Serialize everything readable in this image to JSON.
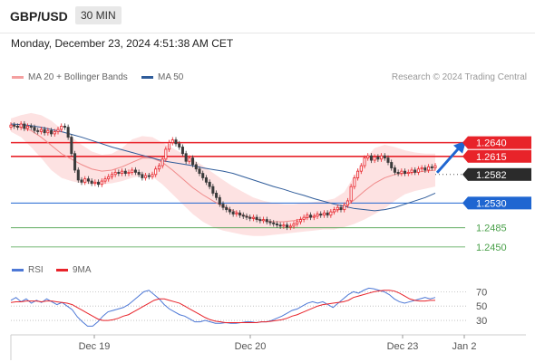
{
  "header": {
    "pair": "GBP/USD",
    "timeframe": "30 MIN"
  },
  "datetime": "Monday, December 23, 2024 4:51:38 AM CET",
  "credit": "Research © 2024 Trading Central",
  "colors": {
    "up": "#e8232a",
    "down": "#3a3a3a",
    "resistance": "#e8232a",
    "pivot": "#1f66d1",
    "support": "#4aa04a",
    "ma50": "#2f5c9a",
    "bb": "#f4a0a0",
    "rsi": "#4d78d6",
    "rsi_ma": "#e8232a"
  },
  "legend": {
    "ma20": "MA 20 + Bollinger Bands",
    "ma50": "MA 50",
    "rsi": "RSI",
    "rsi_ma": "9MA"
  },
  "chart_data": [
    {
      "type": "candlestick",
      "x_labels": [
        "Dec 19",
        "Dec 20",
        "Dec 23",
        "Jan 2"
      ],
      "y_range": [
        1.2435,
        1.2702
      ],
      "current_price": 1.2582,
      "levels": [
        {
          "label": "1.2640",
          "value": 1.264,
          "kind": "resistance"
        },
        {
          "label": "1.2615",
          "value": 1.2615,
          "kind": "resistance"
        },
        {
          "label": "1.2582",
          "value": 1.2582,
          "kind": "current"
        },
        {
          "label": "1.2530",
          "value": 1.253,
          "kind": "pivot"
        },
        {
          "label": "1.2485",
          "value": 1.2485,
          "kind": "support"
        },
        {
          "label": "1.2450",
          "value": 1.245,
          "kind": "support"
        }
      ],
      "closes": [
        1.2672,
        1.267,
        1.2668,
        1.2674,
        1.2666,
        1.267,
        1.2668,
        1.2662,
        1.266,
        1.2664,
        1.2658,
        1.2662,
        1.2656,
        1.266,
        1.2664,
        1.267,
        1.2668,
        1.265,
        1.262,
        1.259,
        1.2572,
        1.2568,
        1.2574,
        1.257,
        1.2566,
        1.2568,
        1.2564,
        1.257,
        1.2574,
        1.2578,
        1.2582,
        1.2586,
        1.2584,
        1.2588,
        1.2584,
        1.2586,
        1.259,
        1.2586,
        1.2582,
        1.2576,
        1.258,
        1.2578,
        1.2582,
        1.2592,
        1.2598,
        1.261,
        1.2628,
        1.264,
        1.2645,
        1.2638,
        1.2632,
        1.262,
        1.2606,
        1.2612,
        1.26,
        1.2592,
        1.2584,
        1.2576,
        1.2568,
        1.256,
        1.2548,
        1.254,
        1.2528,
        1.2522,
        1.2518,
        1.2514,
        1.251,
        1.2512,
        1.2508,
        1.2506,
        1.2504,
        1.2502,
        1.2504,
        1.25,
        1.2498,
        1.25,
        1.2496,
        1.2494,
        1.2492,
        1.249,
        1.2488,
        1.249,
        1.2486,
        1.2488,
        1.2492,
        1.2496,
        1.25,
        1.2504,
        1.2508,
        1.2504,
        1.2506,
        1.251,
        1.2508,
        1.2512,
        1.2508,
        1.2514,
        1.2518,
        1.2522,
        1.2518,
        1.2526,
        1.2534,
        1.256,
        1.2576,
        1.2588,
        1.2598,
        1.2612,
        1.2616,
        1.2608,
        1.2614,
        1.261,
        1.2616,
        1.2612,
        1.2604,
        1.2594,
        1.2586,
        1.2584,
        1.2588,
        1.2584,
        1.2586,
        1.259,
        1.2586,
        1.2592,
        1.2594,
        1.259,
        1.2596,
        1.2594,
        1.2598
      ],
      "ma50": [
        1.2674,
        1.2673,
        1.2671,
        1.2668,
        1.2664,
        1.266,
        1.2655,
        1.265,
        1.2644,
        1.2638,
        1.2632,
        1.2627,
        1.2622,
        1.2617,
        1.2612,
        1.2607,
        1.2604,
        1.2601,
        1.2598,
        1.2594,
        1.2591,
        1.2588,
        1.2584,
        1.2578,
        1.2572,
        1.2566,
        1.256,
        1.2555,
        1.2549,
        1.2544,
        1.2538,
        1.2533,
        1.2528,
        1.2524,
        1.252,
        1.2518,
        1.2516,
        1.2518,
        1.2522,
        1.2528,
        1.2534,
        1.254,
        1.2548
      ],
      "ma20": [
        1.2672,
        1.2668,
        1.2662,
        1.265,
        1.2635,
        1.262,
        1.261,
        1.26,
        1.2592,
        1.2588,
        1.259,
        1.2596,
        1.2604,
        1.2612,
        1.2612,
        1.2604,
        1.259,
        1.2574,
        1.2558,
        1.2545,
        1.2534,
        1.2524,
        1.2516,
        1.2508,
        1.2502,
        1.2498,
        1.2496,
        1.2496,
        1.2498,
        1.2502,
        1.2506,
        1.251,
        1.2514,
        1.2522,
        1.2536,
        1.2552,
        1.2566,
        1.2576,
        1.2582,
        1.2584,
        1.2586,
        1.2588,
        1.259
      ],
      "bb_upper": [
        1.2684,
        1.269,
        1.2694,
        1.269,
        1.268,
        1.2665,
        1.265,
        1.2636,
        1.2624,
        1.2618,
        1.262,
        1.263,
        1.2646,
        1.2652,
        1.265,
        1.264,
        1.263,
        1.262,
        1.261,
        1.2598,
        1.2585,
        1.2572,
        1.256,
        1.255,
        1.254,
        1.2534,
        1.253,
        1.2528,
        1.2528,
        1.253,
        1.2532,
        1.2534,
        1.2538,
        1.255,
        1.258,
        1.261,
        1.263,
        1.2636,
        1.2632,
        1.2626,
        1.2622,
        1.262,
        1.262
      ],
      "bb_lower": [
        1.266,
        1.265,
        1.2632,
        1.2612,
        1.259,
        1.2576,
        1.257,
        1.2566,
        1.2564,
        1.2564,
        1.2566,
        1.257,
        1.2576,
        1.258,
        1.2578,
        1.2564,
        1.2546,
        1.2528,
        1.251,
        1.2496,
        1.2486,
        1.248,
        1.2476,
        1.2472,
        1.247,
        1.247,
        1.2472,
        1.2474,
        1.2476,
        1.2478,
        1.248,
        1.2482,
        1.2482,
        1.2486,
        1.2492,
        1.25,
        1.251,
        1.252,
        1.2534,
        1.2546,
        1.2552,
        1.2556,
        1.256
      ]
    },
    {
      "type": "line",
      "title": "RSI",
      "y_range": [
        20,
        78
      ],
      "y_ticks": [
        70,
        50,
        30
      ],
      "series": [
        {
          "name": "RSI",
          "values": [
            58,
            62,
            56,
            60,
            54,
            58,
            55,
            60,
            56,
            52,
            55,
            50,
            45,
            35,
            28,
            22,
            22,
            28,
            36,
            42,
            44,
            46,
            48,
            52,
            58,
            64,
            70,
            72,
            66,
            60,
            52,
            46,
            42,
            38,
            36,
            32,
            28,
            28,
            30,
            28,
            26,
            26,
            27,
            26,
            26,
            27,
            28,
            28,
            27,
            28,
            28,
            30,
            33,
            36,
            40,
            44,
            46,
            50,
            54,
            56,
            54,
            56,
            52,
            48,
            54,
            60,
            66,
            70,
            68,
            72,
            75,
            74,
            72,
            70,
            66,
            60,
            56,
            54,
            56,
            58,
            60,
            62,
            60,
            62
          ]
        },
        {
          "name": "9MA",
          "values": [
            55,
            56,
            56,
            57,
            57,
            57,
            56,
            57,
            57,
            56,
            55,
            54,
            52,
            48,
            44,
            40,
            36,
            32,
            30,
            30,
            31,
            33,
            36,
            38,
            42,
            46,
            50,
            54,
            58,
            60,
            60,
            58,
            56,
            54,
            50,
            46,
            42,
            38,
            34,
            31,
            29,
            28,
            27,
            27,
            27,
            27,
            27,
            27,
            27,
            28,
            28,
            29,
            30,
            31,
            33,
            36,
            38,
            41,
            44,
            47,
            50,
            52,
            53,
            54,
            55,
            56,
            58,
            62,
            64,
            66,
            68,
            70,
            71,
            72,
            72,
            71,
            68,
            64,
            60,
            58,
            57,
            57,
            58,
            58
          ]
        }
      ]
    }
  ]
}
